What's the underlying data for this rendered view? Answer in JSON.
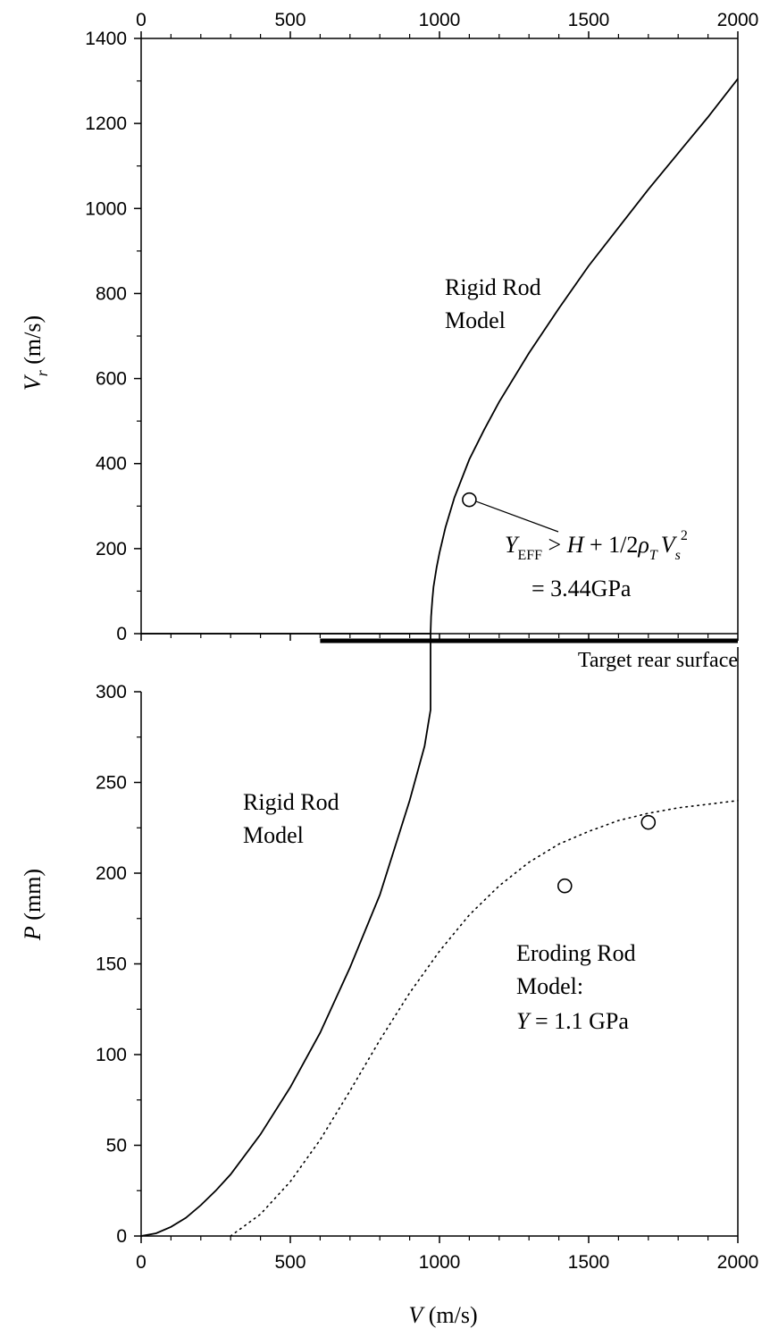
{
  "chart_data": [
    {
      "type": "line",
      "panel": "top",
      "xlabel": "V (m/s)",
      "ylabel_main": "V",
      "ylabel_sub": "r",
      "ylabel_rest": " (m/s)",
      "xlim": [
        0,
        2000
      ],
      "ylim": [
        0,
        1400
      ],
      "x_ticks": [
        "0",
        "500",
        "1000",
        "1500",
        "2000"
      ],
      "y_ticks": [
        "0",
        "200",
        "400",
        "600",
        "800",
        "1000",
        "1200",
        "1400"
      ],
      "grid": false,
      "series": [
        {
          "style": "solid",
          "x": [
            0,
            970,
            972,
            976,
            980,
            990,
            1000,
            1020,
            1050,
            1100,
            1150,
            1200,
            1300,
            1400,
            1500,
            1600,
            1700,
            1800,
            1900,
            2000
          ],
          "y": [
            0,
            0,
            40,
            80,
            110,
            155,
            190,
            250,
            320,
            410,
            480,
            545,
            660,
            765,
            865,
            955,
            1045,
            1130,
            1215,
            1305
          ]
        }
      ],
      "markers": [
        {
          "x": 1100,
          "y": 315
        }
      ],
      "annotations": {
        "model_line1": "Rigid Rod",
        "model_line2": "Model",
        "eq_Y": "Y",
        "eq_Y_sub": "EFF",
        "eq_gt": " > ",
        "eq_H": "H",
        "eq_plus": " + 1/2",
        "eq_rho": "ρ",
        "eq_rho_sub": "T",
        "eq_V": "V",
        "eq_V_sub": "s",
        "eq_V_sup": "2",
        "eq_value": "= 3.44GPa"
      }
    },
    {
      "type": "line",
      "panel": "bottom",
      "xlabel_main": "V",
      "xlabel_rest": " (m/s)",
      "ylabel_main": "P",
      "ylabel_rest": " (mm)",
      "xlim": [
        0,
        2000
      ],
      "ylim": [
        0,
        300
      ],
      "x_ticks": [
        "0",
        "500",
        "1000",
        "1500",
        "2000"
      ],
      "y_ticks": [
        "0",
        "50",
        "100",
        "150",
        "200",
        "250",
        "300"
      ],
      "grid": false,
      "series": [
        {
          "style": "solid",
          "x": [
            0,
            50,
            100,
            150,
            200,
            250,
            300,
            400,
            500,
            600,
            700,
            800,
            900,
            950,
            970
          ],
          "y": [
            0,
            1.5,
            5,
            10,
            17,
            25,
            34,
            56,
            82,
            112,
            148,
            188,
            240,
            270,
            290
          ]
        },
        {
          "style": "dotted",
          "x": [
            300,
            400,
            500,
            600,
            700,
            800,
            900,
            1000,
            1100,
            1200,
            1300,
            1400,
            1500,
            1600,
            1700,
            1800,
            1900,
            2000
          ],
          "y": [
            0,
            12,
            30,
            53,
            80,
            108,
            134,
            157,
            177,
            193,
            206,
            216,
            223,
            229,
            233,
            236,
            238,
            240
          ]
        }
      ],
      "markers": [
        {
          "x": 1420,
          "y": 193
        },
        {
          "x": 1700,
          "y": 228
        }
      ],
      "annotations": {
        "rigid_line1": "Rigid Rod",
        "rigid_line2": "Model",
        "eroding_line1": "Eroding Rod",
        "eroding_line2": "Model:",
        "eroding_Y": "Y",
        "eroding_val": " = 1.1 GPa"
      }
    }
  ],
  "target_rear_surface": {
    "label": "Target rear surface",
    "x_start": 600,
    "x_end": 2000
  }
}
